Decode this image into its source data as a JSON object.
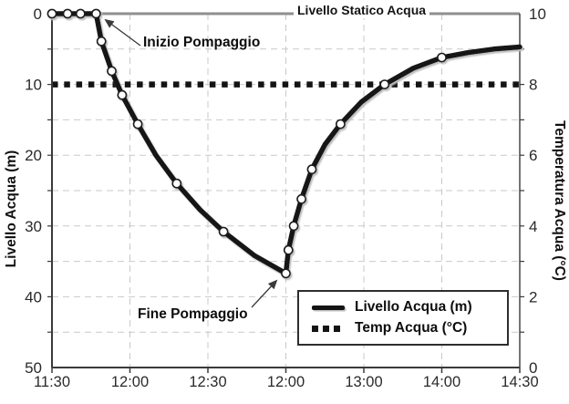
{
  "figure": {
    "static_line_label": "Livello Statico Acqua",
    "annotations": {
      "start": "Inizio Pompaggio",
      "end": "Fine Pompaggio"
    },
    "left_axis": {
      "title": "Livello Acqua (m)",
      "ticks": [
        "0",
        "10",
        "20",
        "30",
        "40",
        "50"
      ]
    },
    "right_axis": {
      "title": "Temperatura Acqua (°C)",
      "ticks": [
        "10",
        "8",
        "6",
        "4",
        "2",
        "0"
      ]
    },
    "x_axis": {
      "ticks": [
        "11:30",
        "12:00",
        "12:30",
        "12:00",
        "13:00",
        "14:00",
        "14:30"
      ]
    },
    "legend": {
      "items": [
        {
          "label": "Livello Acqua (m)",
          "style": "solid"
        },
        {
          "label": "Temp Acqua (°C)",
          "style": "dotted"
        }
      ]
    },
    "colors": {
      "curve": "#141414",
      "marker_fill": "#ffffff",
      "marker_stroke": "#1a1a1a",
      "temp_dots": "#141414",
      "grid": "#c9c9c9",
      "static_line": "#8f8f8f",
      "axis": "#3a3a3a",
      "text": "#2a2a2a",
      "shadow": "#bdbdbd"
    }
  },
  "chart_data": {
    "type": "line",
    "title": "",
    "x_axis": {
      "tick_labels": [
        "11:30",
        "12:00",
        "12:30",
        "12:00",
        "13:00",
        "14:00",
        "14:30"
      ],
      "range_minutes": [
        "11:30",
        "14:30"
      ]
    },
    "y_left": {
      "label": "Livello Acqua (m)",
      "range": [
        0,
        50
      ],
      "inverted": true,
      "gridline_step": 5
    },
    "y_right": {
      "label": "Temperatura Acqua (°C)",
      "range": [
        0,
        10
      ]
    },
    "grid": true,
    "legend_position": "lower-right-inside",
    "reference_lines": [
      {
        "label": "Livello Statico Acqua",
        "axis": "left",
        "value": 0
      }
    ],
    "series": [
      {
        "name": "Livello Acqua (m)",
        "axis": "left",
        "style": "solid-thick",
        "marker": "circle",
        "points": [
          [
            "11:30",
            0,
            1
          ],
          [
            "11:36",
            0,
            1
          ],
          [
            "11:41",
            0,
            1
          ],
          [
            "11:47",
            0,
            1
          ],
          [
            "11:49",
            3.9,
            1
          ],
          [
            "11:53",
            8.1,
            1
          ],
          [
            "11:57",
            11.5,
            1
          ],
          [
            "12:03",
            15.6,
            1
          ],
          [
            "12:10",
            20.0,
            0
          ],
          [
            "12:18",
            24.0,
            1
          ],
          [
            "12:27",
            27.7,
            0
          ],
          [
            "12:36",
            30.8,
            1
          ],
          [
            "12:48",
            34.2,
            0
          ],
          [
            "13:00",
            36.7,
            1
          ],
          [
            "13:01",
            33.4,
            1
          ],
          [
            "13:03",
            30.0,
            1
          ],
          [
            "13:06",
            26.2,
            1
          ],
          [
            "13:10",
            22.0,
            1
          ],
          [
            "13:15",
            18.5,
            0
          ],
          [
            "13:21",
            15.6,
            1
          ],
          [
            "13:29",
            12.5,
            0
          ],
          [
            "13:38",
            10.0,
            1
          ],
          [
            "13:49",
            7.7,
            0
          ],
          [
            "14:00",
            6.2,
            1
          ],
          [
            "14:10",
            5.5,
            0
          ],
          [
            "14:20",
            5.0,
            0
          ],
          [
            "14:30",
            4.7,
            0
          ]
        ]
      },
      {
        "name": "Temp Acqua (°C)",
        "axis": "right",
        "style": "dotted",
        "points": [
          [
            "11:30",
            8,
            0
          ],
          [
            "14:30",
            8,
            0
          ]
        ]
      }
    ],
    "annotations": [
      {
        "text": "Inizio Pompaggio",
        "t": "11:47",
        "value": 0
      },
      {
        "text": "Fine Pompaggio",
        "t": "13:00",
        "value": 36.7
      }
    ]
  }
}
